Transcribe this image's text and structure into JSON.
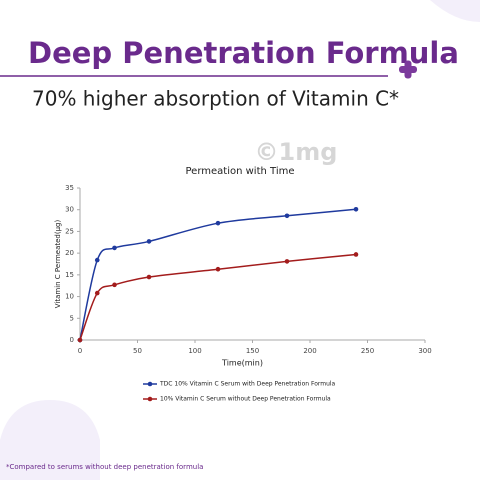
{
  "header": {
    "title": "Deep Penetration Formula",
    "subtitle": "70% higher absorption of Vitamin C*",
    "watermark": "©1mg"
  },
  "footnote": "*Compared to serums without deep penetration formula",
  "chart_data": {
    "type": "line",
    "title": "Permeation with Time",
    "x_label": "Time(min)",
    "y_label": "Vitamin C Permeated(µg)",
    "x": [
      0,
      15,
      30,
      60,
      120,
      180,
      240
    ],
    "series": [
      {
        "name": "TDC 10% Vitamin C Serum with Deep Penetration Formula",
        "color": "#1f3a9e",
        "values": [
          0,
          18.4,
          21.2,
          22.7,
          26.9,
          28.6,
          30.1
        ]
      },
      {
        "name": "10% Vitamin C Serum without Deep Penetration Formula",
        "color": "#a31c1c",
        "values": [
          0,
          10.8,
          12.7,
          14.5,
          16.3,
          18.1,
          19.7
        ]
      }
    ],
    "xlim": [
      0,
      300
    ],
    "xticks": [
      0,
      50,
      100,
      150,
      200,
      250,
      300
    ],
    "ylim": [
      0,
      35
    ],
    "yticks": [
      0,
      5,
      10,
      15,
      20,
      25,
      30,
      35
    ],
    "grid": false,
    "legend": "bottom"
  }
}
